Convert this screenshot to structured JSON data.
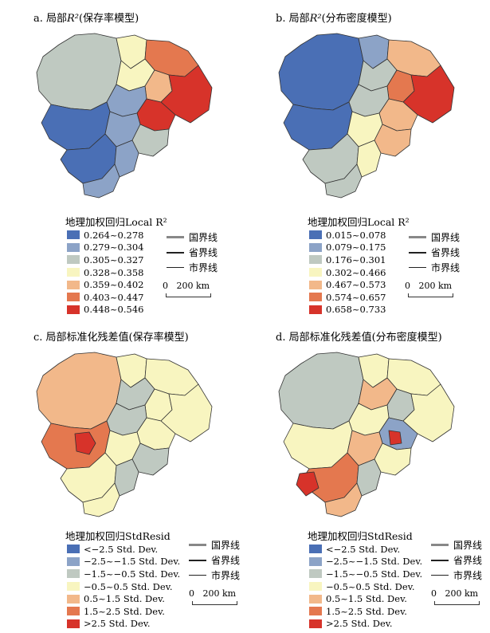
{
  "panels": {
    "a": {
      "title_prefix": "a. 局部",
      "title_var": "R²",
      "title_suffix": "(保存率模型)",
      "legend_title": "地理加权回归Local R²",
      "classes": [
        {
          "label": "0.264~0.278",
          "color": "#4a6fb5"
        },
        {
          "label": "0.279~0.304",
          "color": "#8ca3c7"
        },
        {
          "label": "0.305~0.327",
          "color": "#bfc9c1"
        },
        {
          "label": "0.328~0.358",
          "color": "#f8f5c0"
        },
        {
          "label": "0.359~0.402",
          "color": "#f2b88a"
        },
        {
          "label": "0.403~0.447",
          "color": "#e4784f"
        },
        {
          "label": "0.448~0.546",
          "color": "#d7332a"
        }
      ]
    },
    "b": {
      "title_prefix": "b. 局部",
      "title_var": "R²",
      "title_suffix": "(分布密度模型)",
      "legend_title": "地理加权回归Local R²",
      "classes": [
        {
          "label": "0.015~0.078",
          "color": "#4a6fb5"
        },
        {
          "label": "0.079~0.175",
          "color": "#8ca3c7"
        },
        {
          "label": "0.176~0.301",
          "color": "#bfc9c1"
        },
        {
          "label": "0.302~0.466",
          "color": "#f8f5c0"
        },
        {
          "label": "0.467~0.573",
          "color": "#f2b88a"
        },
        {
          "label": "0.574~0.657",
          "color": "#e4784f"
        },
        {
          "label": "0.658~0.733",
          "color": "#d7332a"
        }
      ]
    },
    "c": {
      "title": "c. 局部标准化残差值(保存率模型)",
      "legend_title": "地理加权回归StdResid",
      "classes": [
        {
          "label": "<−2.5 Std. Dev.",
          "color": "#4a6fb5"
        },
        {
          "label": "−2.5~−1.5 Std. Dev.",
          "color": "#8ca3c7"
        },
        {
          "label": "−1.5~−0.5 Std. Dev.",
          "color": "#bfc9c1"
        },
        {
          "label": "−0.5~0.5 Std. Dev.",
          "color": "#f8f5c0"
        },
        {
          "label": "0.5~1.5 Std. Dev.",
          "color": "#f2b88a"
        },
        {
          "label": "1.5~2.5 Std. Dev.",
          "color": "#e4784f"
        },
        {
          "label": ">2.5 Std. Dev.",
          "color": "#d7332a"
        }
      ]
    },
    "d": {
      "title": "d. 局部标准化残差值(分布密度模型)",
      "legend_title": "地理加权回归StdResid",
      "classes": [
        {
          "label": "<−2.5 Std. Dev.",
          "color": "#4a6fb5"
        },
        {
          "label": "−2.5~−1.5 Std. Dev.",
          "color": "#8ca3c7"
        },
        {
          "label": "−1.5~−0.5 Std. Dev.",
          "color": "#bfc9c1"
        },
        {
          "label": "−0.5~0.5 Std. Dev.",
          "color": "#f8f5c0"
        },
        {
          "label": "0.5~1.5 Std. Dev.",
          "color": "#f2b88a"
        },
        {
          "label": "1.5~2.5 Std. Dev.",
          "color": "#e4784f"
        },
        {
          "label": ">2.5 Std. Dev.",
          "color": "#d7332a"
        }
      ]
    }
  },
  "boundaries": {
    "national": "国界线",
    "provincial": "省界线",
    "municipal": "市界线"
  },
  "scale": {
    "zero": "0",
    "distance": "200 km"
  }
}
